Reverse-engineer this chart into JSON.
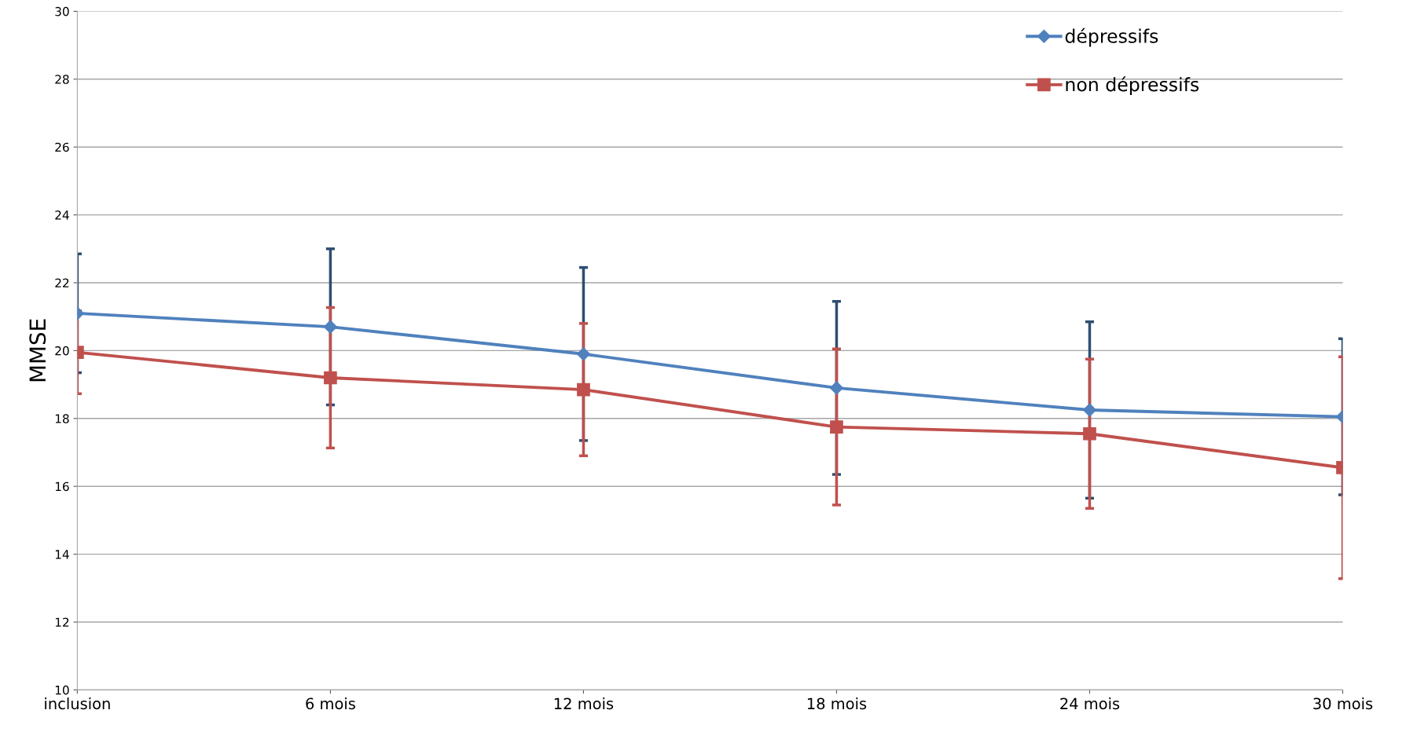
{
  "chart_data": {
    "type": "line",
    "ylabel": "MMSE",
    "categories": [
      "inclusion",
      "6 mois",
      "12 mois",
      "18 mois",
      "24 mois",
      "30 mois"
    ],
    "series": [
      {
        "name": "dépressifs",
        "color": "#4f81bd",
        "marker": "diamond",
        "values": [
          21.1,
          20.7,
          19.9,
          18.9,
          18.25,
          18.05
        ],
        "errors": [
          1.75,
          2.3,
          2.55,
          2.55,
          2.6,
          2.3
        ]
      },
      {
        "name": "non dépressifs",
        "color": "#c0504d",
        "marker": "square",
        "values": [
          19.95,
          19.2,
          18.85,
          17.75,
          17.55,
          16.55
        ],
        "errors": [
          1.22,
          2.07,
          1.95,
          2.3,
          2.2,
          3.27
        ]
      }
    ],
    "ylim": [
      10,
      30
    ],
    "yticks": [
      10,
      12,
      14,
      16,
      18,
      20,
      22,
      24,
      26,
      28,
      30
    ],
    "grid": "y",
    "legend": "top right",
    "line_style": "solid"
  }
}
